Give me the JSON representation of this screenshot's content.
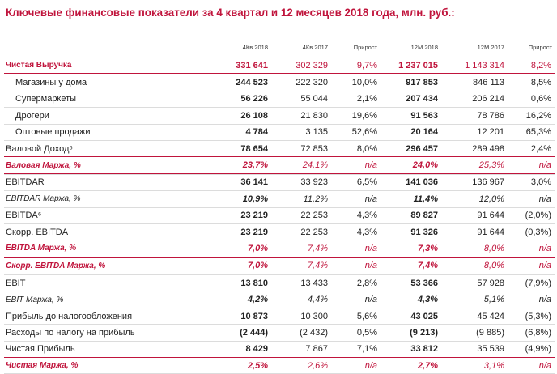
{
  "title": "Ключевые финансовые показатели за 4 квартал и 12 месяцев 2018 года, млн. руб.:",
  "headers": [
    "",
    "4Кв 2018",
    "4Кв 2017",
    "Прирост",
    "12М 2018",
    "12М 2017",
    "Прирост"
  ],
  "rows": [
    {
      "label": "Чистая Выручка",
      "v": [
        "331 641",
        "302 329",
        "9,7%",
        "1 237 015",
        "1 143 314",
        "8,2%"
      ]
    },
    {
      "label": "Магазины у дома",
      "v": [
        "244 523",
        "222 320",
        "10,0%",
        "917 853",
        "846 113",
        "8,5%"
      ]
    },
    {
      "label": "Супермаркеты",
      "v": [
        "56 226",
        "55 044",
        "2,1%",
        "207 434",
        "206 214",
        "0,6%"
      ]
    },
    {
      "label": "Дрогери",
      "v": [
        "26 108",
        "21 830",
        "19,6%",
        "91 563",
        "78 786",
        "16,2%"
      ]
    },
    {
      "label": "Оптовые продажи",
      "v": [
        "4 784",
        "3 135",
        "52,6%",
        "20 164",
        "12 201",
        "65,3%"
      ]
    },
    {
      "label": "Валовой Доход⁵",
      "v": [
        "78 654",
        "72 853",
        "8,0%",
        "296 457",
        "289 498",
        "2,4%"
      ]
    },
    {
      "label": "Валовая Маржа, %",
      "v": [
        "23,7%",
        "24,1%",
        "n/a",
        "24,0%",
        "25,3%",
        "n/a"
      ]
    },
    {
      "label": "EBITDAR",
      "v": [
        "36 141",
        "33 923",
        "6,5%",
        "141 036",
        "136 967",
        "3,0%"
      ]
    },
    {
      "label": "EBITDAR Маржа, %",
      "v": [
        "10,9%",
        "11,2%",
        "n/a",
        "11,4%",
        "12,0%",
        "n/a"
      ]
    },
    {
      "label": "EBITDA⁶",
      "v": [
        "23 219",
        "22 253",
        "4,3%",
        "89 827",
        "91 644",
        "(2,0%)"
      ]
    },
    {
      "label": "Скорр. EBITDA",
      "v": [
        "23 219",
        "22 253",
        "4,3%",
        "91 326",
        "91 644",
        "(0,3%)"
      ]
    },
    {
      "label": "EBITDA Маржа, %",
      "v": [
        "7,0%",
        "7,4%",
        "n/a",
        "7,3%",
        "8,0%",
        "n/a"
      ]
    },
    {
      "label": "Скорр. EBITDA Маржа, %",
      "v": [
        "7,0%",
        "7,4%",
        "n/a",
        "7,4%",
        "8,0%",
        "n/a"
      ]
    },
    {
      "label": "EBIT",
      "v": [
        "13 810",
        "13 433",
        "2,8%",
        "53 366",
        "57 928",
        "(7,9%)"
      ]
    },
    {
      "label": "EBIT Маржа, %",
      "v": [
        "4,2%",
        "4,4%",
        "n/a",
        "4,3%",
        "5,1%",
        "n/a"
      ]
    },
    {
      "label": "Прибыль до налогообложения",
      "v": [
        "10 873",
        "10 300",
        "5,6%",
        "43 025",
        "45 424",
        "(5,3%)"
      ]
    },
    {
      "label": "Расходы по налогу на прибыль",
      "v": [
        "(2 444)",
        "(2 432)",
        "0,5%",
        "(9 213)",
        "(9 885)",
        "(6,8%)"
      ]
    },
    {
      "label": "Чистая Прибыль",
      "v": [
        "8 429",
        "7 867",
        "7,1%",
        "33 812",
        "35 539",
        "(4,9%)"
      ]
    },
    {
      "label": "Чистая Маржа, %",
      "v": [
        "2,5%",
        "2,6%",
        "n/a",
        "2,7%",
        "3,1%",
        "n/a"
      ]
    }
  ]
}
